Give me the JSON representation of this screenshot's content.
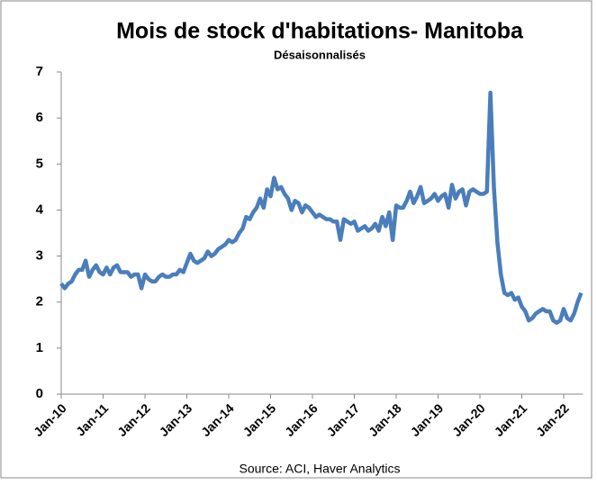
{
  "chart_data": {
    "type": "line",
    "title": "Mois de stock d'habitations- Manitoba",
    "subtitle": "Désaisonnalisés",
    "source": "Source: ACI, Haver Analytics",
    "categories": [
      "Jan-10",
      null,
      null,
      null,
      null,
      null,
      null,
      null,
      null,
      null,
      null,
      null,
      "Jan-11",
      null,
      null,
      null,
      null,
      null,
      null,
      null,
      null,
      null,
      null,
      null,
      "Jan-12",
      null,
      null,
      null,
      null,
      null,
      null,
      null,
      null,
      null,
      null,
      null,
      "Jan-13",
      null,
      null,
      null,
      null,
      null,
      null,
      null,
      null,
      null,
      null,
      null,
      "Jan-14",
      null,
      null,
      null,
      null,
      null,
      null,
      null,
      null,
      null,
      null,
      null,
      "Jan-15",
      null,
      null,
      null,
      null,
      null,
      null,
      null,
      null,
      null,
      null,
      null,
      "Jan-16",
      null,
      null,
      null,
      null,
      null,
      null,
      null,
      null,
      null,
      null,
      null,
      "Jan-17",
      null,
      null,
      null,
      null,
      null,
      null,
      null,
      null,
      null,
      null,
      null,
      "Jan-18",
      null,
      null,
      null,
      null,
      null,
      null,
      null,
      null,
      null,
      null,
      null,
      "Jan-19",
      null,
      null,
      null,
      null,
      null,
      null,
      null,
      null,
      null,
      null,
      null,
      "Jan-20",
      null,
      null,
      null,
      null,
      null,
      null,
      null,
      null,
      null,
      null,
      null,
      "Jan-21",
      null,
      null,
      null,
      null,
      null,
      null,
      null,
      null,
      null,
      null,
      null,
      "Jan-22",
      null,
      null,
      null,
      null,
      null
    ],
    "series": [
      {
        "color": "#4a7ebb",
        "values": [
          2.4,
          2.3,
          2.4,
          2.45,
          2.6,
          2.7,
          2.7,
          2.9,
          2.55,
          2.7,
          2.8,
          2.65,
          2.6,
          2.75,
          2.6,
          2.75,
          2.8,
          2.65,
          2.65,
          2.65,
          2.55,
          2.6,
          2.6,
          2.3,
          2.6,
          2.5,
          2.45,
          2.45,
          2.55,
          2.6,
          2.55,
          2.55,
          2.6,
          2.6,
          2.7,
          2.65,
          2.85,
          3.05,
          2.9,
          2.85,
          2.9,
          2.95,
          3.1,
          3.0,
          3.05,
          3.15,
          3.2,
          3.25,
          3.35,
          3.3,
          3.35,
          3.5,
          3.6,
          3.85,
          3.8,
          3.95,
          4.05,
          4.25,
          4.05,
          4.45,
          4.3,
          4.7,
          4.45,
          4.5,
          4.35,
          4.25,
          4.0,
          4.2,
          4.15,
          3.95,
          4.1,
          4.05,
          3.95,
          3.85,
          3.9,
          3.85,
          3.8,
          3.8,
          3.75,
          3.75,
          3.35,
          3.8,
          3.75,
          3.7,
          3.75,
          3.55,
          3.6,
          3.65,
          3.55,
          3.6,
          3.7,
          3.55,
          3.85,
          3.65,
          3.95,
          3.35,
          4.1,
          4.05,
          4.05,
          4.2,
          4.4,
          4.15,
          4.3,
          4.5,
          4.15,
          4.2,
          4.25,
          4.35,
          4.2,
          4.3,
          4.35,
          4.05,
          4.55,
          4.25,
          4.4,
          4.45,
          4.1,
          4.4,
          4.45,
          4.4,
          4.35,
          4.35,
          4.4,
          6.55,
          4.5,
          3.3,
          2.6,
          2.2,
          2.15,
          2.2,
          2.05,
          2.1,
          1.9,
          1.8,
          1.6,
          1.65,
          1.75,
          1.8,
          1.85,
          1.8,
          1.8,
          1.6,
          1.55,
          1.6,
          1.85,
          1.65,
          1.6,
          1.75,
          2.0,
          2.2
        ]
      }
    ],
    "ylim": [
      0,
      7
    ],
    "yticks": [
      0,
      1,
      2,
      3,
      4,
      5,
      6,
      7
    ]
  }
}
